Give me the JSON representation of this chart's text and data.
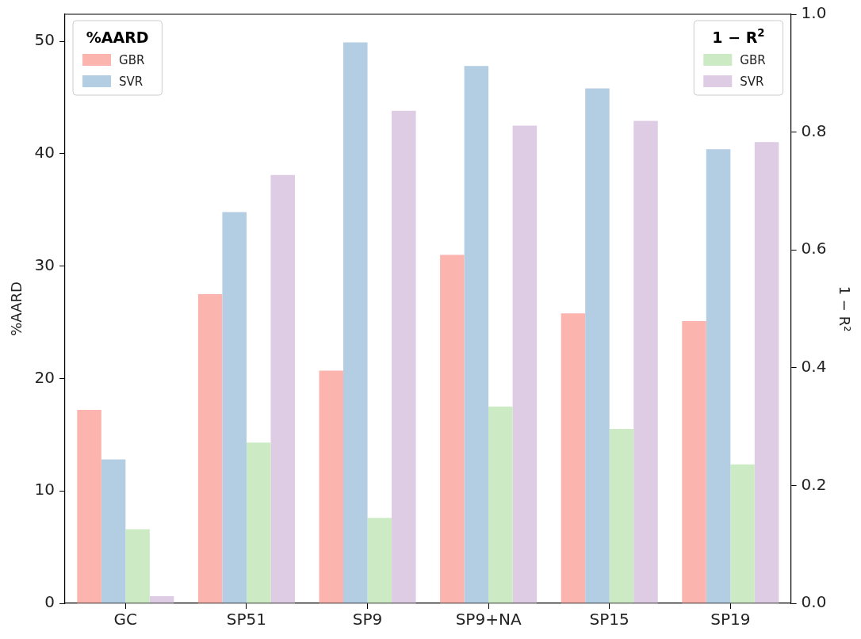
{
  "chart_data": {
    "type": "bar",
    "ylabel": "%AARD",
    "y2label": "1 − R²",
    "legend_title": [
      "%AARD",
      "1 − R$^{2}$"
    ],
    "legend": [
      "top left",
      "top right"
    ],
    "categories": [
      "GC",
      "SP51",
      "SP9",
      "SP9+NA",
      "SP15",
      "SP19"
    ],
    "series": [
      {
        "name": "GBR",
        "color": "#fbb4ae",
        "values": [
          17.2,
          27.5,
          20.7,
          31.0,
          25.8,
          25.1
        ]
      },
      {
        "name": "SVR",
        "color": "#b3cde3",
        "values": [
          12.8,
          34.8,
          49.9,
          47.8,
          45.8,
          40.4
        ]
      },
      {
        "name": "GBR",
        "color": "#ccebc5",
        "axis": "y2",
        "values": [
          0.126,
          0.273,
          0.145,
          0.334,
          0.296,
          0.236
        ]
      },
      {
        "name": "SVR",
        "color": "#decbe4",
        "axis": "y2",
        "values": [
          0.012,
          0.727,
          0.836,
          0.811,
          0.819,
          0.783
        ]
      }
    ],
    "ylim": [
      0,
      52.4
    ],
    "yticks": [
      0,
      10,
      20,
      30,
      40,
      50
    ],
    "y2lim": [
      0,
      1
    ],
    "y2ticks": [
      {
        "value": 0,
        "label": "0.0"
      },
      0.2,
      0.4,
      0.6,
      0.8,
      {
        "value": 1,
        "label": "1.0"
      }
    ],
    "grid": false
  }
}
